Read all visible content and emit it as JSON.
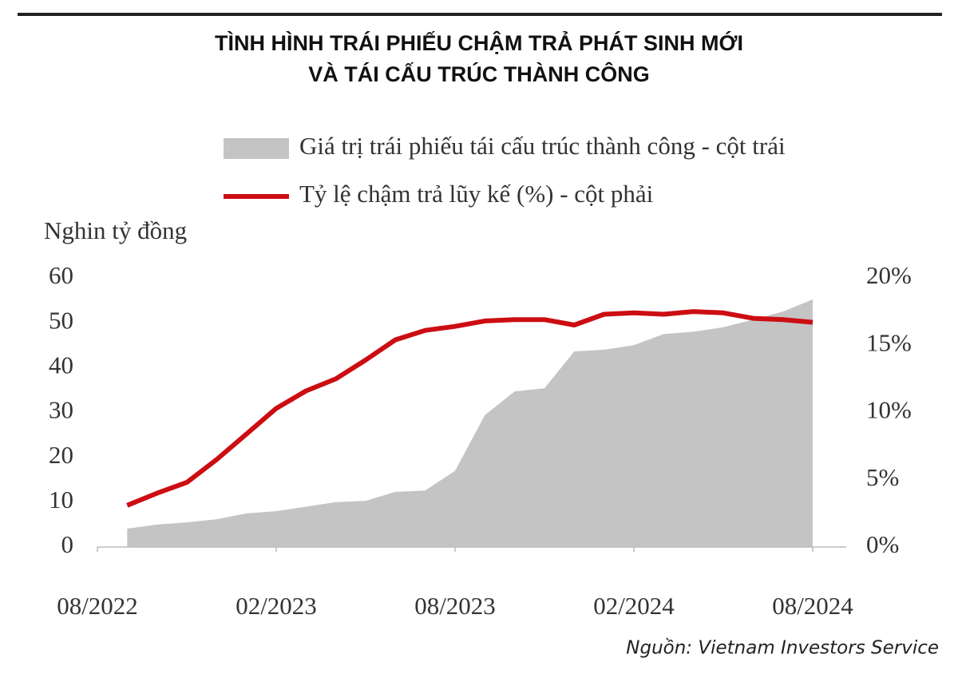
{
  "chart_data": {
    "type": "area-line",
    "title": [
      "TÌNH HÌNH TRÁI PHIẾU CHẬM TRẢ PHÁT SINH MỚI",
      "VÀ TÁI CẤU TRÚC THÀNH CÔNG"
    ],
    "y_label": "Nghin tỷ đồng",
    "source": "Nguồn: Vietnam Investors Service",
    "x": [
      "09/2022",
      "10/2022",
      "11/2022",
      "12/2022",
      "01/2023",
      "02/2023",
      "03/2023",
      "04/2023",
      "05/2023",
      "06/2023",
      "07/2023",
      "08/2023",
      "09/2023",
      "10/2023",
      "11/2023",
      "12/2023",
      "01/2024",
      "02/2024",
      "03/2024",
      "04/2024",
      "05/2024",
      "06/2024",
      "07/2024",
      "08/2024"
    ],
    "xlim": [
      "08/2022",
      "08/2024"
    ],
    "xticks": [
      "08/2022",
      "02/2023",
      "08/2023",
      "02/2024",
      "08/2024"
    ],
    "series": [
      {
        "name": "Giá trị trái phiếu tái cấu trúc thành công - cột trái",
        "type": "area",
        "color": "#c4c4c4",
        "values": [
          4.1,
          5,
          5.5,
          6.2,
          7.5,
          8,
          9,
          10,
          10.3,
          12.3,
          12.6,
          17,
          29.4,
          34.7,
          35.4,
          43.6,
          44,
          45,
          47.5,
          48,
          49,
          50.7,
          52.5,
          55.2
        ]
      },
      {
        "name": "Tỷ lệ chậm trả lũy kế (%) - cột phải",
        "type": "line",
        "axis": "y2",
        "color": "#cc0d12",
        "values": [
          3.1,
          4.0,
          4.8,
          6.5,
          8.4,
          10.3,
          11.6,
          12.5,
          13.9,
          15.4,
          16.1,
          16.4,
          16.8,
          16.9,
          16.9,
          16.5,
          17.3,
          17.4,
          17.3,
          17.5,
          17.4,
          17.0,
          16.9,
          16.7
        ]
      }
    ],
    "ylim": [
      0,
      60
    ],
    "yticks": [
      0,
      10,
      20,
      30,
      40,
      50,
      60
    ],
    "y2lim": [
      0,
      20
    ],
    "y2ticks": [
      {
        "value": 0,
        "label": "0%"
      },
      {
        "value": 5,
        "label": "5%"
      },
      {
        "value": 10,
        "label": "10%"
      },
      {
        "value": 15,
        "label": "15%"
      },
      {
        "value": 20,
        "label": "20%"
      }
    ]
  }
}
